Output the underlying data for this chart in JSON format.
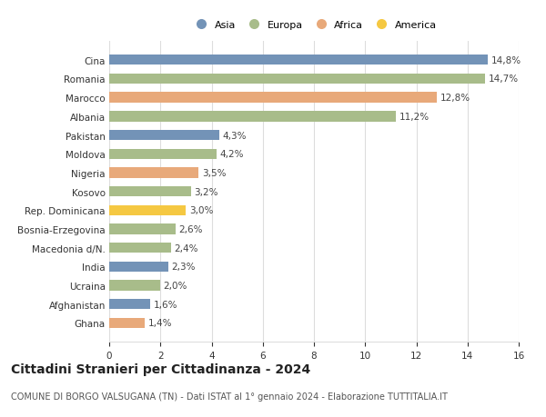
{
  "categories": [
    "Cina",
    "Romania",
    "Marocco",
    "Albania",
    "Pakistan",
    "Moldova",
    "Nigeria",
    "Kosovo",
    "Rep. Dominicana",
    "Bosnia-Erzegovina",
    "Macedonia d/N.",
    "India",
    "Ucraina",
    "Afghanistan",
    "Ghana"
  ],
  "values": [
    14.8,
    14.7,
    12.8,
    11.2,
    4.3,
    4.2,
    3.5,
    3.2,
    3.0,
    2.6,
    2.4,
    2.3,
    2.0,
    1.6,
    1.4
  ],
  "labels": [
    "14,8%",
    "14,7%",
    "12,8%",
    "11,2%",
    "4,3%",
    "4,2%",
    "3,5%",
    "3,2%",
    "3,0%",
    "2,6%",
    "2,4%",
    "2,3%",
    "2,0%",
    "1,6%",
    "1,4%"
  ],
  "continents": [
    "Asia",
    "Europa",
    "Africa",
    "Europa",
    "Asia",
    "Europa",
    "Africa",
    "Europa",
    "America",
    "Europa",
    "Europa",
    "Asia",
    "Europa",
    "Asia",
    "Africa"
  ],
  "colors": {
    "Asia": "#7393b7",
    "Europa": "#a8bc8a",
    "Africa": "#e8a97a",
    "America": "#f5c842"
  },
  "legend_labels": [
    "Asia",
    "Europa",
    "Africa",
    "America"
  ],
  "legend_colors": [
    "#7393b7",
    "#a8bc8a",
    "#e8a97a",
    "#f5c842"
  ],
  "xlim": [
    0,
    16
  ],
  "xticks": [
    0,
    2,
    4,
    6,
    8,
    10,
    12,
    14,
    16
  ],
  "title": "Cittadini Stranieri per Cittadinanza - 2024",
  "subtitle": "COMUNE DI BORGO VALSUGANA (TN) - Dati ISTAT al 1° gennaio 2024 - Elaborazione TUTTITALIA.IT",
  "background_color": "#ffffff",
  "grid_color": "#dddddd",
  "bar_height": 0.55,
  "label_fontsize": 7.5,
  "tick_fontsize": 7.5,
  "title_fontsize": 10,
  "subtitle_fontsize": 7.0
}
